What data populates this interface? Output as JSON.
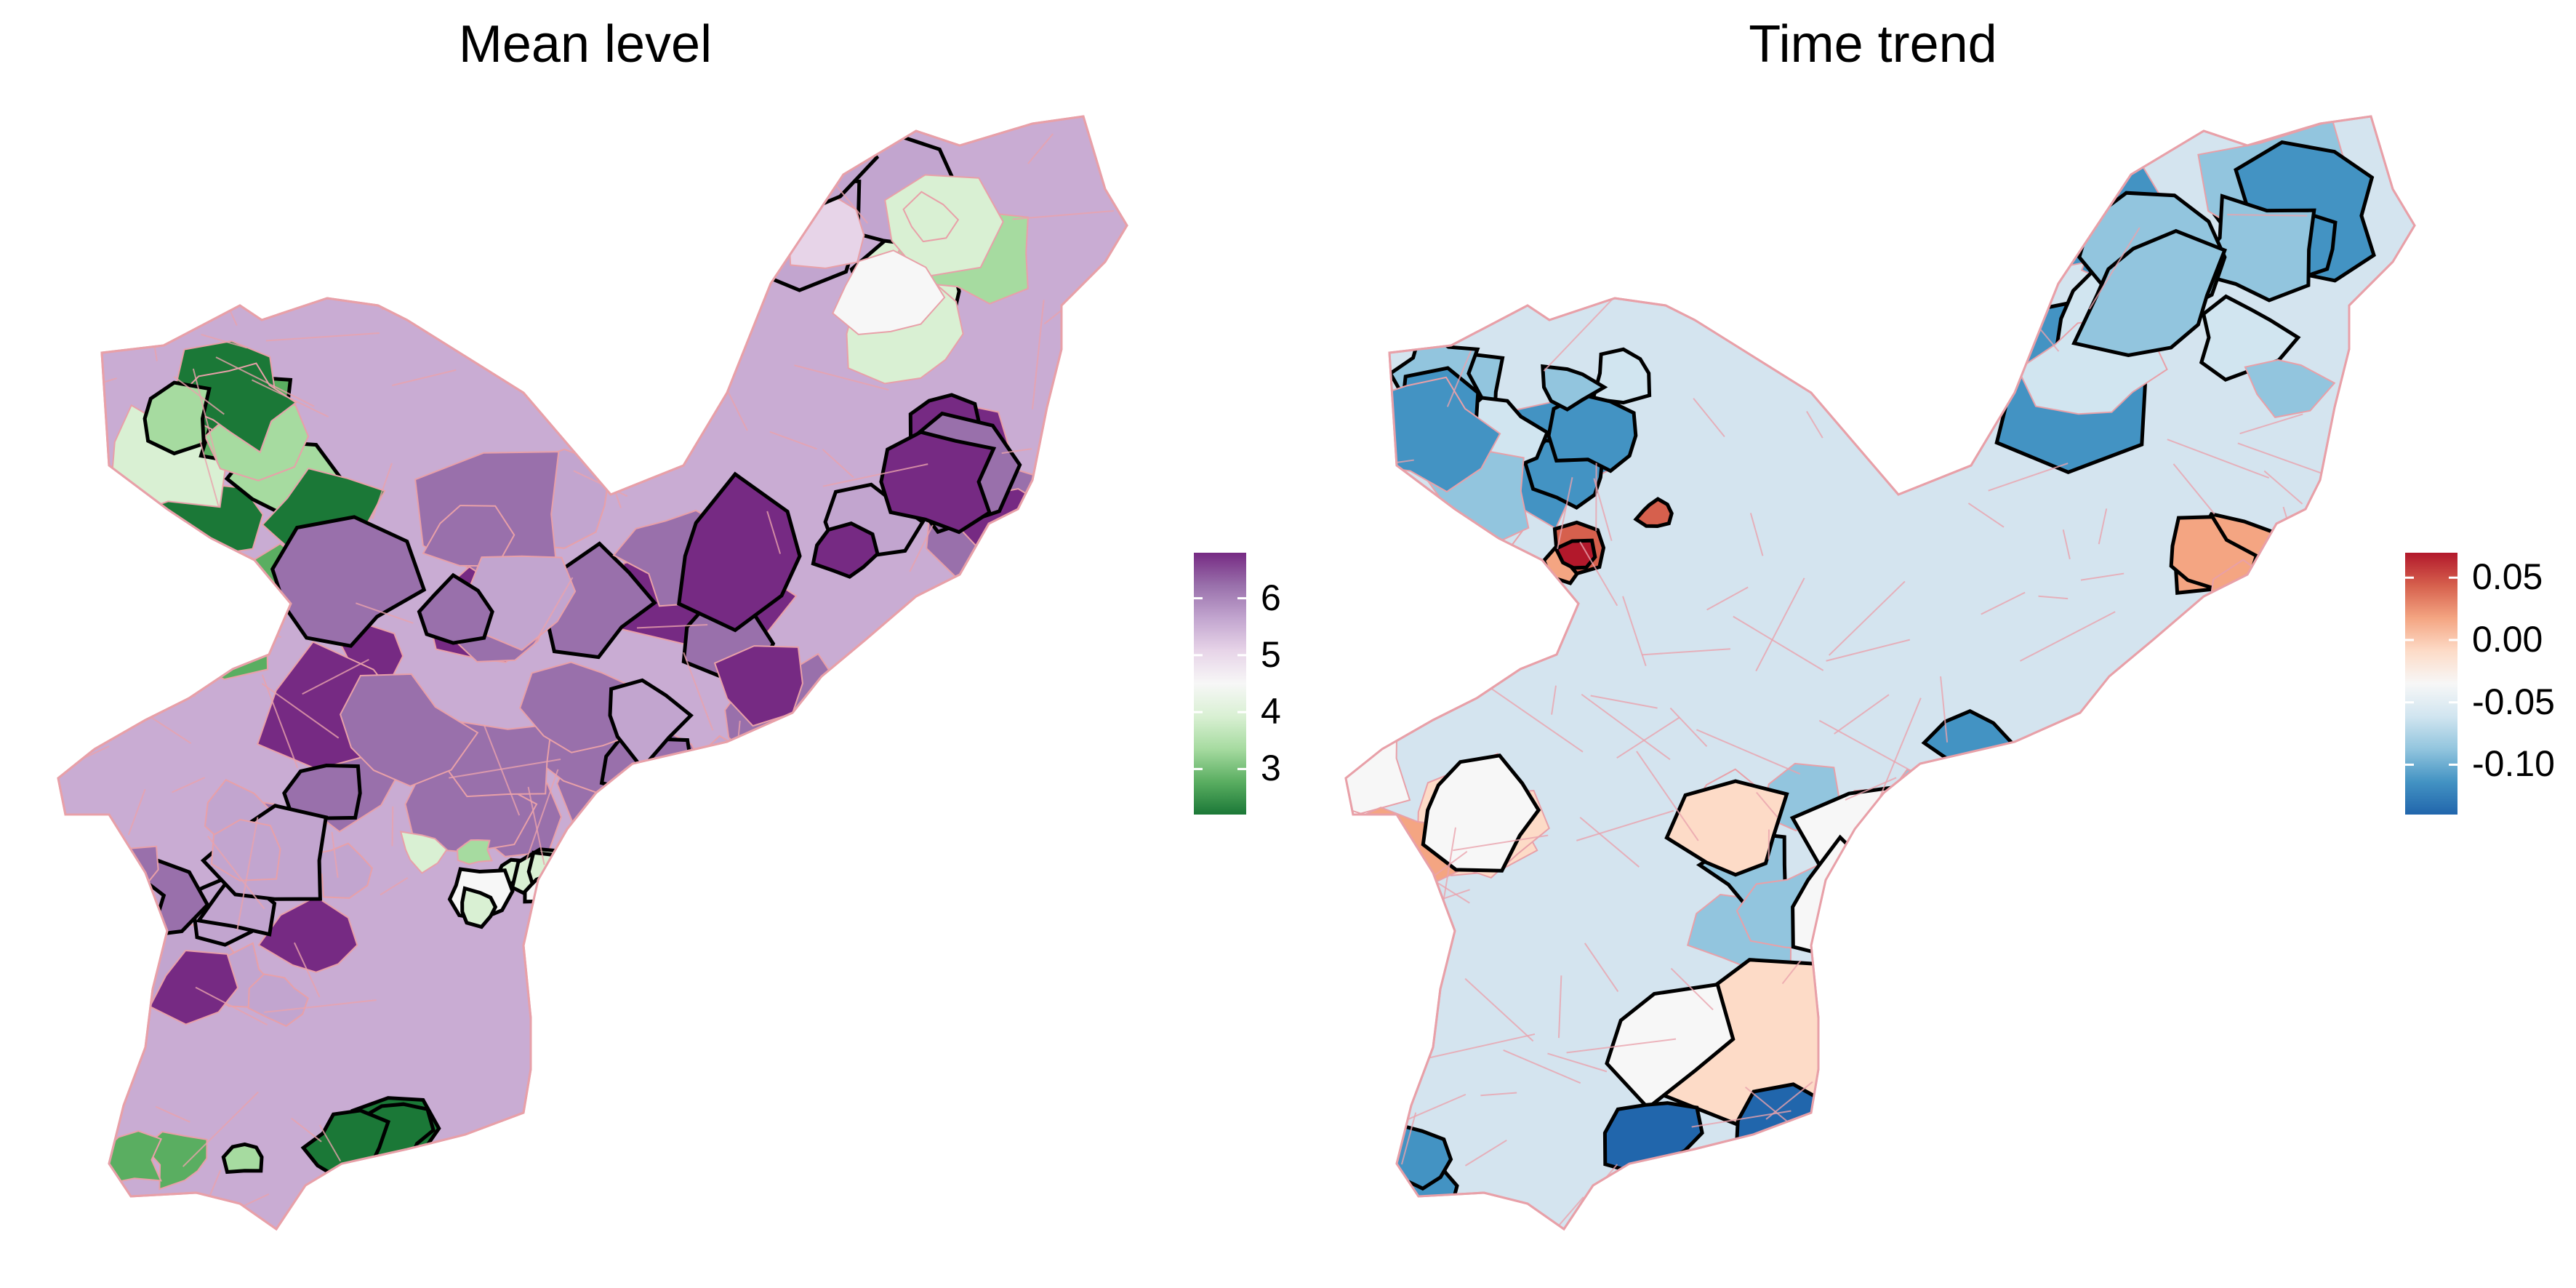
{
  "panels": [
    {
      "title": "Mean level",
      "legend": {
        "ticks": [
          "6",
          "5",
          "4",
          "3"
        ],
        "tick_values": [
          6,
          5,
          4,
          3
        ],
        "range": [
          2.2,
          6.8
        ],
        "colors": [
          "#1b7837",
          "#5aae61",
          "#a6dba0",
          "#d9f0d3",
          "#f7f7f7",
          "#e7d4e8",
          "#c2a5cf",
          "#9970ab",
          "#762a83"
        ]
      }
    },
    {
      "title": "Time trend",
      "legend": {
        "ticks": [
          "0.05",
          "0.00",
          "-0.05",
          "-0.10"
        ],
        "tick_values": [
          0.05,
          0.0,
          -0.05,
          -0.1
        ],
        "range": [
          -0.14,
          0.07
        ],
        "colors": [
          "#2166ac",
          "#4393c3",
          "#92c5de",
          "#d1e5f0",
          "#f7f7f7",
          "#fddbc7",
          "#f4a582",
          "#d6604d",
          "#b2182b"
        ]
      }
    }
  ]
}
